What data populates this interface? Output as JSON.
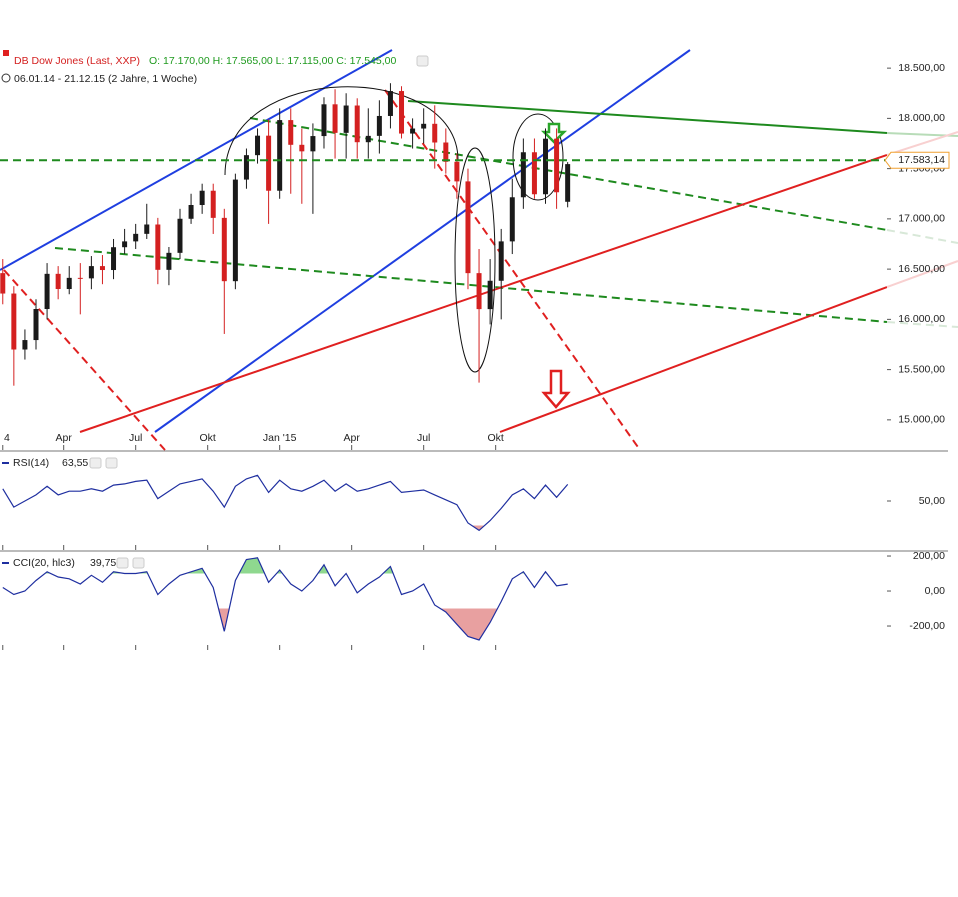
{
  "chart_data": [
    {
      "type": "candlestick",
      "title": "DB Dow Jones (Last, XXP)",
      "ohlc_label": "O: 17.170,00 H: 17.565,00 L: 17.115,00 C: 17.545,00",
      "subtitle": "06.01.14 - 21.12.15 (2 Jahre, 1 Woche)",
      "x": [
        0,
        2,
        4,
        6,
        8,
        10,
        12,
        14,
        16,
        18,
        20,
        22,
        24,
        26,
        28,
        30,
        32,
        34,
        36,
        38,
        40,
        42,
        44,
        46,
        48,
        50,
        52,
        54,
        56,
        58,
        60,
        62,
        64,
        66,
        68,
        70,
        72,
        74,
        76,
        78,
        80,
        82,
        84,
        86,
        88,
        90,
        92,
        94,
        96,
        98,
        100,
        102
      ],
      "open": [
        16460,
        16257,
        15700,
        15794,
        16103,
        16453,
        16302,
        16413,
        16408,
        16530,
        16491,
        16718,
        16776,
        16851,
        16944,
        16493,
        16662,
        17001,
        17138,
        17280,
        17010,
        16380,
        17391,
        17634,
        17828,
        17280,
        17983,
        17737,
        17672,
        17824,
        18140,
        17856,
        18128,
        17763,
        17826,
        18024,
        18272,
        17849,
        17899,
        17946,
        17760,
        17568,
        17373,
        16460,
        16102,
        16384,
        16776,
        17215,
        17663,
        17245,
        17798,
        17170
      ],
      "high": [
        16600,
        16330,
        15900,
        16200,
        16560,
        16530,
        16530,
        16560,
        16630,
        16640,
        16800,
        16900,
        16950,
        17150,
        17010,
        16720,
        17100,
        17250,
        17350,
        17350,
        17100,
        17450,
        17700,
        17900,
        17990,
        18100,
        18100,
        17900,
        17950,
        18210,
        18290,
        18250,
        18200,
        18100,
        18180,
        18350,
        18320,
        18000,
        18100,
        18130,
        17900,
        17650,
        17500,
        16700,
        16600,
        16900,
        17400,
        17800,
        17800,
        17900,
        17900,
        17565
      ],
      "low": [
        16150,
        15340,
        15600,
        15700,
        16000,
        16200,
        16250,
        16050,
        16300,
        16350,
        16400,
        16650,
        16700,
        16800,
        16350,
        16340,
        16600,
        16950,
        17050,
        16850,
        15855,
        16300,
        17300,
        17550,
        16950,
        17200,
        17250,
        17150,
        17050,
        17700,
        17600,
        17600,
        17600,
        17600,
        17650,
        17900,
        17800,
        17700,
        17750,
        17500,
        17450,
        17200,
        16300,
        15370,
        15950,
        16000,
        16650,
        17100,
        17200,
        17150,
        17100,
        17115
      ],
      "close": [
        16257,
        15700,
        15794,
        16103,
        16453,
        16302,
        16413,
        16408,
        16530,
        16491,
        16718,
        16776,
        16851,
        16944,
        16493,
        16662,
        17001,
        17138,
        17280,
        17010,
        16380,
        17391,
        17634,
        17828,
        17280,
        17983,
        17737,
        17672,
        17824,
        18140,
        17856,
        18128,
        17763,
        17826,
        18024,
        18272,
        17849,
        17899,
        17946,
        17760,
        17568,
        17373,
        16460,
        16102,
        16384,
        16776,
        17215,
        17663,
        17245,
        17798,
        17265,
        17545
      ],
      "up_color": "#1a1a1a",
      "down_color": "#d42020",
      "xlim": [
        -0.5,
        159.3
      ],
      "xticks": [
        {
          "value": 0,
          "label": "4"
        },
        {
          "value": 11,
          "label": "Apr"
        },
        {
          "value": 24,
          "label": "Jul"
        },
        {
          "value": 37,
          "label": "Okt"
        },
        {
          "value": 50,
          "label": "Jan '15"
        },
        {
          "value": 63,
          "label": "Apr"
        },
        {
          "value": 76,
          "label": "Jul"
        },
        {
          "value": 89,
          "label": "Okt"
        }
      ],
      "ylim": [
        14700,
        18780
      ],
      "yticks": [
        {
          "value": 18500,
          "label": "18.500,00"
        },
        {
          "value": 18000,
          "label": "18.000,00"
        },
        {
          "value": 17500,
          "label": "17.500,00"
        },
        {
          "value": 17000,
          "label": "17.000,00"
        },
        {
          "value": 16500,
          "label": "16.500,00"
        },
        {
          "value": 16000,
          "label": "16.000,00"
        },
        {
          "value": 15500,
          "label": "15.500,00"
        },
        {
          "value": 15000,
          "label": "15.000,00"
        }
      ],
      "last_price": {
        "value": 17583.14,
        "label": "17.583,14"
      }
    },
    {
      "type": "line",
      "title": "RSI(14)",
      "last_label": "63,55",
      "color": "#1f2fa0",
      "x": [
        0,
        2,
        4,
        6,
        8,
        10,
        12,
        14,
        16,
        18,
        20,
        22,
        24,
        26,
        28,
        30,
        32,
        34,
        36,
        38,
        40,
        42,
        44,
        46,
        48,
        50,
        52,
        54,
        56,
        58,
        60,
        62,
        64,
        66,
        68,
        70,
        72,
        74,
        76,
        78,
        80,
        82,
        84,
        86,
        88,
        90,
        92,
        94,
        96,
        98,
        100,
        102
      ],
      "values": [
        60,
        45,
        50,
        55,
        62,
        55,
        58,
        58,
        60,
        58,
        63,
        64,
        66,
        67,
        52,
        58,
        64,
        66,
        68,
        58,
        45,
        62,
        68,
        71,
        57,
        67,
        60,
        58,
        62,
        67,
        58,
        64,
        58,
        60,
        63,
        66,
        57,
        58,
        59,
        55,
        51,
        47,
        32,
        26,
        34,
        44,
        55,
        60,
        52,
        63,
        53,
        63.55
      ],
      "upper_band": 70,
      "lower_band": 30,
      "upper_color": "#8fd88f",
      "lower_color": "#e8a0a0",
      "xlim": [
        -0.5,
        159.3
      ],
      "ylim": [
        10,
        90
      ],
      "yticks": [
        {
          "value": 50,
          "label": "50,00"
        }
      ]
    },
    {
      "type": "line",
      "title": "CCI(20, hlc3)",
      "last_label": "39,75",
      "color": "#1f2fa0",
      "x": [
        0,
        2,
        4,
        6,
        8,
        10,
        12,
        14,
        16,
        18,
        20,
        22,
        24,
        26,
        28,
        30,
        32,
        34,
        36,
        38,
        40,
        42,
        44,
        46,
        48,
        50,
        52,
        54,
        56,
        58,
        60,
        62,
        64,
        66,
        68,
        70,
        72,
        74,
        76,
        78,
        80,
        82,
        84,
        86,
        88,
        90,
        92,
        94,
        96,
        98,
        100,
        102
      ],
      "values": [
        20,
        -20,
        0,
        60,
        110,
        80,
        70,
        40,
        90,
        50,
        110,
        100,
        100,
        110,
        -20,
        40,
        90,
        110,
        130,
        20,
        -230,
        60,
        180,
        190,
        50,
        120,
        40,
        0,
        60,
        150,
        30,
        100,
        -10,
        40,
        80,
        140,
        -20,
        0,
        40,
        -80,
        -120,
        -190,
        -260,
        -280,
        -180,
        -60,
        70,
        110,
        20,
        110,
        30,
        39.75
      ],
      "upper_band": 100,
      "lower_band": -100,
      "upper_color": "#8fd88f",
      "lower_color": "#e8a0a0",
      "xlim": [
        -0.5,
        159.3
      ],
      "ylim": [
        -337,
        223
      ],
      "yticks": [
        {
          "value": 200,
          "label": "200,00"
        },
        {
          "value": 0,
          "label": "0,00"
        },
        {
          "value": -200,
          "label": "-200,00"
        }
      ]
    }
  ]
}
